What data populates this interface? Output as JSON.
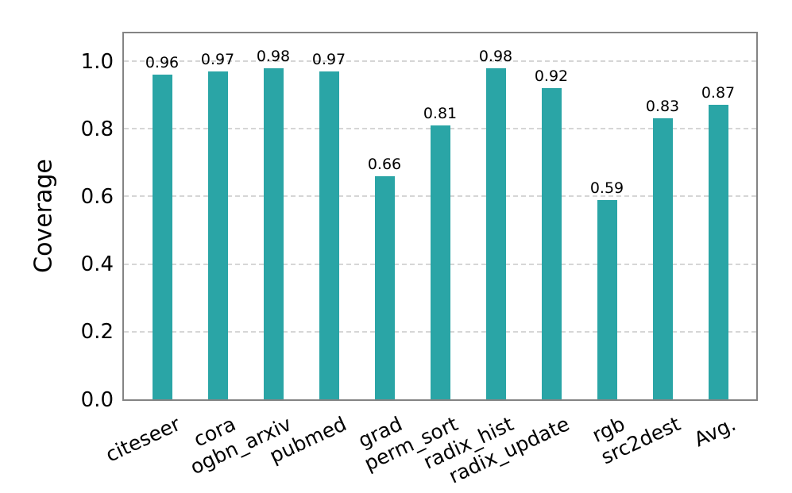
{
  "chart_data": {
    "type": "bar",
    "title": "",
    "ylabel": "Coverage",
    "xlabel": "",
    "categories": [
      "citeseer",
      "cora",
      "ogbn_arxiv",
      "pubmed",
      "grad",
      "perm_sort",
      "radix_hist",
      "radix_update",
      "rgb",
      "src2dest",
      "Avg."
    ],
    "values": [
      0.96,
      0.97,
      0.98,
      0.97,
      0.66,
      0.81,
      0.98,
      0.92,
      0.59,
      0.83,
      0.87
    ],
    "bar_labels": [
      "0.96",
      "0.97",
      "0.98",
      "0.97",
      "0.66",
      "0.81",
      "0.98",
      "0.92",
      "0.59",
      "0.83",
      "0.87"
    ],
    "y_tick_labels": [
      "0.0",
      "0.2",
      "0.4",
      "0.6",
      "0.8",
      "1.0"
    ],
    "grid_values": [
      0.2,
      0.4,
      0.6,
      0.8,
      1.0
    ],
    "ylim": [
      0,
      1.08
    ],
    "grid": "horizontal-dashed",
    "legend_position": "none",
    "bar_color": "#2AA5A6",
    "axis_color": "#848484",
    "grid_color": "#D6D6D6",
    "text_color": "#000000"
  }
}
